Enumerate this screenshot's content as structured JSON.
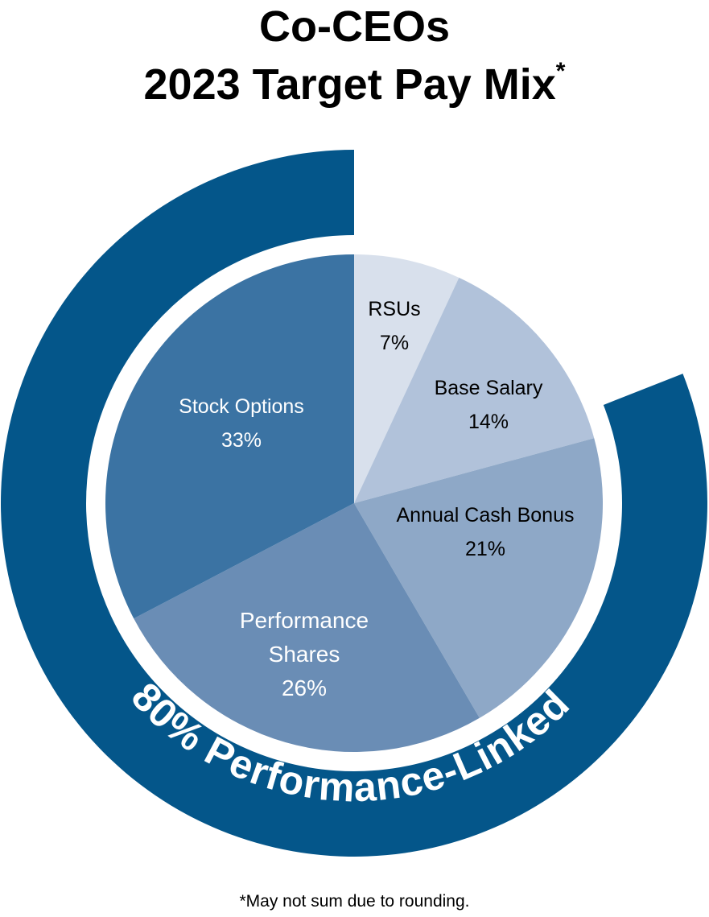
{
  "title": {
    "line1": "Co-CEOs",
    "line2": "2023 Target Pay Mix",
    "asterisk": "*"
  },
  "footnote": "*May not sum due to rounding.",
  "ring": {
    "label": "80% Performance-Linked",
    "percent": 80,
    "color": "#04568A"
  },
  "chart_data": {
    "type": "pie",
    "title": "Co-CEOs 2023 Target Pay Mix*",
    "categories": [
      "RSUs",
      "Base Salary",
      "Annual Cash Bonus",
      "Performance Shares",
      "Stock Options"
    ],
    "values": [
      7,
      14,
      21,
      26,
      33
    ],
    "unit": "%",
    "colors": [
      "#D8E0EC",
      "#B1C2DA",
      "#8EA8C7",
      "#6A8DB5",
      "#3B73A3"
    ],
    "label_colors": [
      "#000000",
      "#000000",
      "#000000",
      "#FFFFFF",
      "#FFFFFF"
    ],
    "start_angle": "12 o'clock, clockwise",
    "annotation": "80% Performance-Linked (Annual Cash Bonus + Performance Shares + Stock Options)",
    "footnote": "*May not sum due to rounding."
  },
  "slices": [
    {
      "name": "RSUs",
      "label_lines": [
        "RSUs"
      ],
      "pct_label": "7%"
    },
    {
      "name": "Base Salary",
      "label_lines": [
        "Base Salary"
      ],
      "pct_label": "14%"
    },
    {
      "name": "Annual Cash Bonus",
      "label_lines": [
        "Annual Cash Bonus"
      ],
      "pct_label": "21%"
    },
    {
      "name": "Performance Shares",
      "label_lines": [
        "Performance",
        "Shares"
      ],
      "pct_label": "26%"
    },
    {
      "name": "Stock Options",
      "label_lines": [
        "Stock Options"
      ],
      "pct_label": "33%"
    }
  ]
}
